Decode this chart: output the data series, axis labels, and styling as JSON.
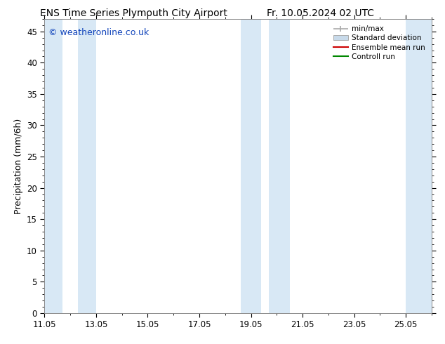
{
  "title_left": "ENS Time Series Plymouth City Airport",
  "title_right": "Fr. 10.05.2024 02 UTC",
  "ylabel": "Precipitation (mm/6h)",
  "ylim": [
    0,
    47
  ],
  "yticks": [
    0,
    5,
    10,
    15,
    20,
    25,
    30,
    35,
    40,
    45
  ],
  "xlim_start": 0,
  "xlim_end": 15.0,
  "xtick_labels": [
    "11.05",
    "13.05",
    "15.05",
    "17.05",
    "19.05",
    "21.05",
    "23.05",
    "25.05"
  ],
  "xtick_positions": [
    0,
    2,
    4,
    6,
    8,
    10,
    12,
    14
  ],
  "shaded_bands": [
    [
      0.0,
      0.7
    ],
    [
      1.3,
      2.0
    ],
    [
      7.6,
      8.4
    ],
    [
      8.7,
      9.5
    ],
    [
      14.0,
      15.0
    ]
  ],
  "shade_color": "#d8e8f5",
  "background_color": "#ffffff",
  "watermark": "© weatheronline.co.uk",
  "watermark_color": "#1144bb",
  "legend_minmax_color": "#aaaaaa",
  "legend_std_color": "#c8daea",
  "ensemble_mean_color": "#cc0000",
  "control_run_color": "#008800",
  "title_fontsize": 10,
  "axis_fontsize": 9,
  "tick_fontsize": 8.5,
  "watermark_fontsize": 9
}
